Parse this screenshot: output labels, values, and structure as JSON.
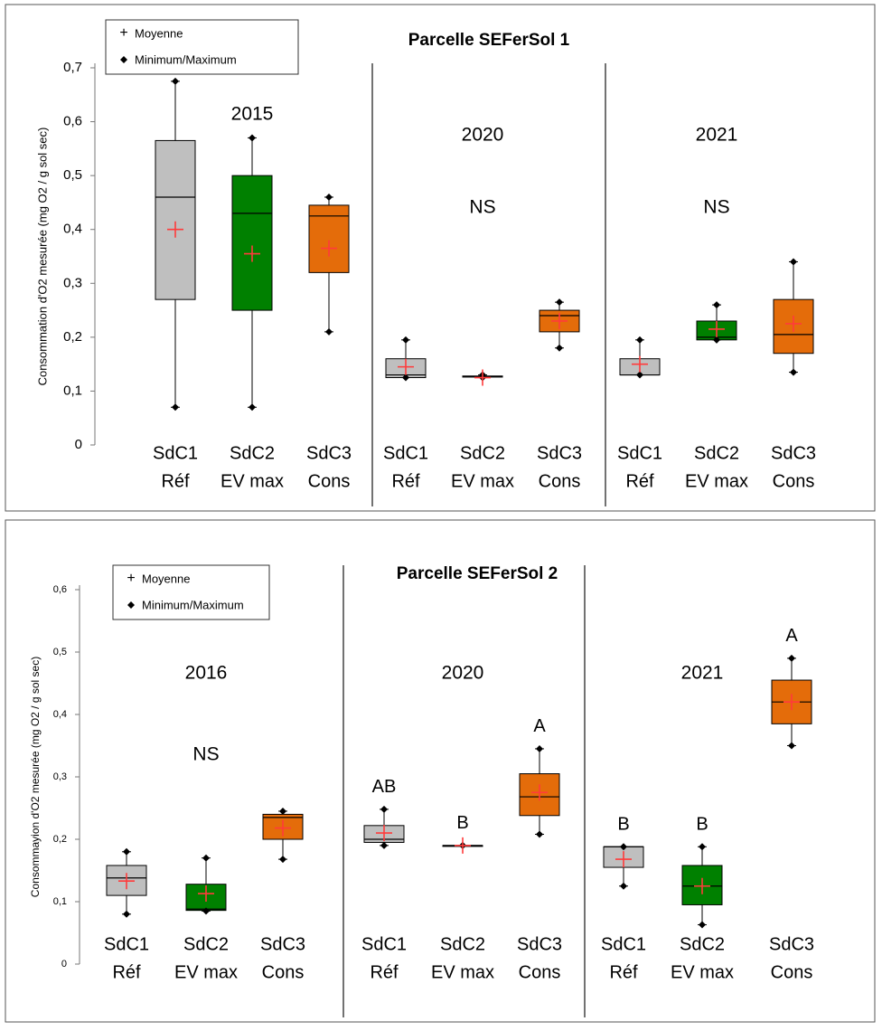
{
  "chart_data": [
    {
      "type": "box",
      "title": "Parcelle SEFerSol 1",
      "y_label": "Consommation  d'O2 mesurée  (mg O2 / g sol sec)",
      "legend": [
        "Moyenne",
        "Minimum/Maximum"
      ],
      "mean_color": "#ff3b3b",
      "ylim": [
        0,
        0.7
      ],
      "yticks": [
        0,
        {
          "value": 0.1,
          "label": "0,1"
        },
        {
          "value": 0.2,
          "label": "0,2"
        },
        {
          "value": 0.3,
          "label": "0,3"
        },
        {
          "value": 0.4,
          "label": "0,4"
        },
        {
          "value": 0.5,
          "label": "0,5"
        },
        {
          "value": 0.6,
          "label": "0,6"
        },
        {
          "value": 0.7,
          "label": "0,7"
        }
      ],
      "groups": [
        {
          "label": "2015",
          "boxes": [
            {
              "name": [
                "SdC1",
                "Réf"
              ],
              "color": "#bfbfbf",
              "min": 0.07,
              "q1": 0.27,
              "median": 0.46,
              "q3": 0.565,
              "max": 0.675,
              "mean": 0.4
            },
            {
              "name": [
                "SdC2",
                "EV max"
              ],
              "color": "#008000",
              "min": 0.07,
              "q1": 0.25,
              "median": 0.43,
              "q3": 0.5,
              "max": 0.57,
              "mean": 0.355
            },
            {
              "name": [
                "SdC3",
                "Cons"
              ],
              "color": "#e46c0a",
              "min": 0.21,
              "q1": 0.32,
              "median": 0.425,
              "q3": 0.445,
              "max": 0.46,
              "mean": 0.365
            }
          ]
        },
        {
          "label": "2020",
          "annotation": "NS",
          "boxes": [
            {
              "name": [
                "SdC1",
                "Réf"
              ],
              "color": "#bfbfbf",
              "min": 0.125,
              "q1": 0.125,
              "median": 0.13,
              "q3": 0.16,
              "max": 0.195,
              "mean": 0.145
            },
            {
              "name": [
                "SdC2",
                "EV max"
              ],
              "color": "#008000",
              "min": 0.125,
              "q1": 0.126,
              "median": 0.127,
              "q3": 0.128,
              "max": 0.13,
              "mean": 0.125
            },
            {
              "name": [
                "SdC3",
                "Cons"
              ],
              "color": "#e46c0a",
              "min": 0.18,
              "q1": 0.21,
              "median": 0.24,
              "q3": 0.25,
              "max": 0.265,
              "mean": 0.23
            }
          ]
        },
        {
          "label": "2021",
          "annotation": "NS",
          "boxes": [
            {
              "name": [
                "SdC1",
                "Réf"
              ],
              "color": "#bfbfbf",
              "min": 0.13,
              "q1": 0.13,
              "median": 0.13,
              "q3": 0.16,
              "max": 0.195,
              "mean": 0.15
            },
            {
              "name": [
                "SdC2",
                "EV max"
              ],
              "color": "#008000",
              "min": 0.195,
              "q1": 0.195,
              "median": 0.2,
              "q3": 0.23,
              "max": 0.26,
              "mean": 0.215
            },
            {
              "name": [
                "SdC3",
                "Cons"
              ],
              "color": "#e46c0a",
              "min": 0.135,
              "q1": 0.17,
              "median": 0.205,
              "q3": 0.27,
              "max": 0.34,
              "mean": 0.225
            }
          ]
        }
      ]
    },
    {
      "type": "box",
      "title": "Parcelle SEFerSol 2",
      "y_label": "Consommayion d'O2 mesurée (mg O2 / g sol sec)",
      "legend": [
        "Moyenne",
        "Minimum/Maximum"
      ],
      "mean_color": "#ff3b3b",
      "ylim": [
        0,
        0.6
      ],
      "yticks": [
        0,
        {
          "value": 0.1,
          "label": "0,1"
        },
        {
          "value": 0.2,
          "label": "0,2"
        },
        {
          "value": 0.3,
          "label": "0,3"
        },
        {
          "value": 0.4,
          "label": "0,4"
        },
        {
          "value": 0.5,
          "label": "0,5"
        },
        {
          "value": 0.6,
          "label": "0,6"
        }
      ],
      "groups": [
        {
          "label": "2016",
          "annotation": "NS",
          "boxes": [
            {
              "name": [
                "SdC1",
                "Réf"
              ],
              "color": "#bfbfbf",
              "min": 0.08,
              "q1": 0.11,
              "median": 0.138,
              "q3": 0.158,
              "max": 0.18,
              "mean": 0.133
            },
            {
              "name": [
                "SdC2",
                "EV max"
              ],
              "color": "#008000",
              "min": 0.085,
              "q1": 0.086,
              "median": 0.088,
              "q3": 0.128,
              "max": 0.17,
              "mean": 0.113
            },
            {
              "name": [
                "SdC3",
                "Cons"
              ],
              "color": "#e46c0a",
              "min": 0.168,
              "q1": 0.2,
              "median": 0.235,
              "q3": 0.24,
              "max": 0.245,
              "mean": 0.218
            }
          ]
        },
        {
          "label": "2020",
          "letter_color": "#70ad47",
          "boxes": [
            {
              "name": [
                "SdC1",
                "Réf"
              ],
              "color": "#bfbfbf",
              "min": 0.19,
              "q1": 0.195,
              "median": 0.2,
              "q3": 0.222,
              "max": 0.248,
              "mean": 0.21,
              "letter": "AB"
            },
            {
              "name": [
                "SdC2",
                "EV max"
              ],
              "color": "#008000",
              "min": 0.19,
              "q1": 0.19,
              "median": 0.19,
              "q3": 0.19,
              "max": 0.19,
              "mean": 0.19,
              "letter": "B"
            },
            {
              "name": [
                "SdC3",
                "Cons"
              ],
              "color": "#e46c0a",
              "min": 0.208,
              "q1": 0.238,
              "median": 0.268,
              "q3": 0.305,
              "max": 0.345,
              "mean": 0.275,
              "letter": "A"
            }
          ]
        },
        {
          "label": "2021",
          "letter_color": "#4472c4",
          "boxes": [
            {
              "name": [
                "SdC1",
                "Réf"
              ],
              "color": "#bfbfbf",
              "min": 0.125,
              "q1": 0.155,
              "median": 0.188,
              "q3": 0.188,
              "max": 0.188,
              "mean": 0.168,
              "letter": "B"
            },
            {
              "name": [
                "SdC2",
                "EV max"
              ],
              "color": "#008000",
              "min": 0.063,
              "q1": 0.095,
              "median": 0.125,
              "q3": 0.158,
              "max": 0.188,
              "mean": 0.125,
              "letter": "B"
            },
            {
              "name": [
                "SdC3",
                "Cons"
              ],
              "color": "#e46c0a",
              "min": 0.35,
              "q1": 0.385,
              "median": 0.42,
              "q3": 0.455,
              "max": 0.49,
              "mean": 0.42,
              "letter": "A"
            }
          ]
        }
      ]
    }
  ]
}
